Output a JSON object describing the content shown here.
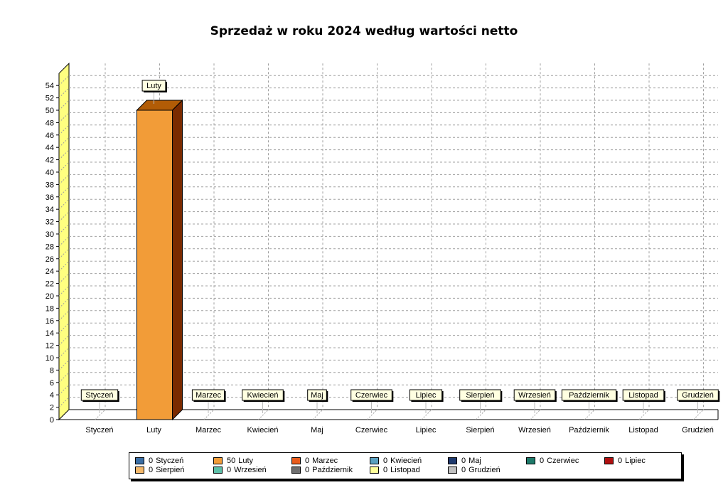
{
  "chart_data": {
    "type": "bar",
    "title": "Sprzedaż w roku 2024 według wartości netto",
    "categories": [
      "Styczeń",
      "Luty",
      "Marzec",
      "Kwiecień",
      "Maj",
      "Czerwiec",
      "Lipiec",
      "Sierpień",
      "Wrzesień",
      "Październik",
      "Listopad",
      "Grudzień"
    ],
    "values": [
      0,
      50,
      0,
      0,
      0,
      0,
      0,
      0,
      0,
      0,
      0,
      0
    ],
    "ylim": [
      0,
      54
    ],
    "ytick_step": 2,
    "grid": true,
    "grid_style": "dashed",
    "three_d": true,
    "data_labels": "category-name",
    "legend_position": "bottom",
    "colors": {
      "luty_bar": "#F29C38",
      "luty_bar_top": "#B25C06",
      "luty_bar_side": "#7A2A00",
      "wall": "#FFFF80",
      "grid": "#A0A0A0",
      "label_bg": "#FFFFE1"
    },
    "legend": [
      {
        "value": "0",
        "label": "Styczeń",
        "color": "#3A6EA5"
      },
      {
        "value": "50",
        "label": "Luty",
        "color": "#F29C38"
      },
      {
        "value": "0",
        "label": "Marzec",
        "color": "#E85C1C"
      },
      {
        "value": "0",
        "label": "Kwiecień",
        "color": "#5AA0C0"
      },
      {
        "value": "0",
        "label": "Maj",
        "color": "#1F3A6E"
      },
      {
        "value": "0",
        "label": "Czerwiec",
        "color": "#1E7A6A"
      },
      {
        "value": "0",
        "label": "Lipiec",
        "color": "#B01010"
      },
      {
        "value": "0",
        "label": "Sierpień",
        "color": "#F4B86A"
      },
      {
        "value": "0",
        "label": "Wrzesień",
        "color": "#5CC0A8"
      },
      {
        "value": "0",
        "label": "Październik",
        "color": "#6E6E6E"
      },
      {
        "value": "0",
        "label": "Listopad",
        "color": "#FFFF99"
      },
      {
        "value": "0",
        "label": "Grudzień",
        "color": "#C0C0C0"
      }
    ]
  }
}
